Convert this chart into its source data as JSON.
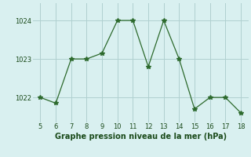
{
  "x": [
    5,
    6,
    7,
    8,
    9,
    10,
    11,
    12,
    13,
    14,
    15,
    16,
    17,
    18
  ],
  "y": [
    1022.0,
    1021.85,
    1023.0,
    1023.0,
    1023.15,
    1024.0,
    1024.0,
    1022.8,
    1024.0,
    1023.0,
    1021.7,
    1022.0,
    1022.0,
    1021.6
  ],
  "line_color": "#2d6a2d",
  "marker": "*",
  "marker_size": 4,
  "background_color": "#d9f0f0",
  "grid_color": "#b0d0d0",
  "xlabel": "Graphe pression niveau de la mer (hPa)",
  "xlabel_fontsize": 7,
  "xlabel_color": "#1a4a1a",
  "tick_color": "#1a4a1a",
  "tick_fontsize": 6,
  "yticks": [
    1022,
    1023,
    1024
  ],
  "xticks": [
    5,
    6,
    7,
    8,
    9,
    10,
    11,
    12,
    13,
    14,
    15,
    16,
    17,
    18
  ],
  "ylim": [
    1021.35,
    1024.45
  ],
  "xlim": [
    4.5,
    18.5
  ]
}
